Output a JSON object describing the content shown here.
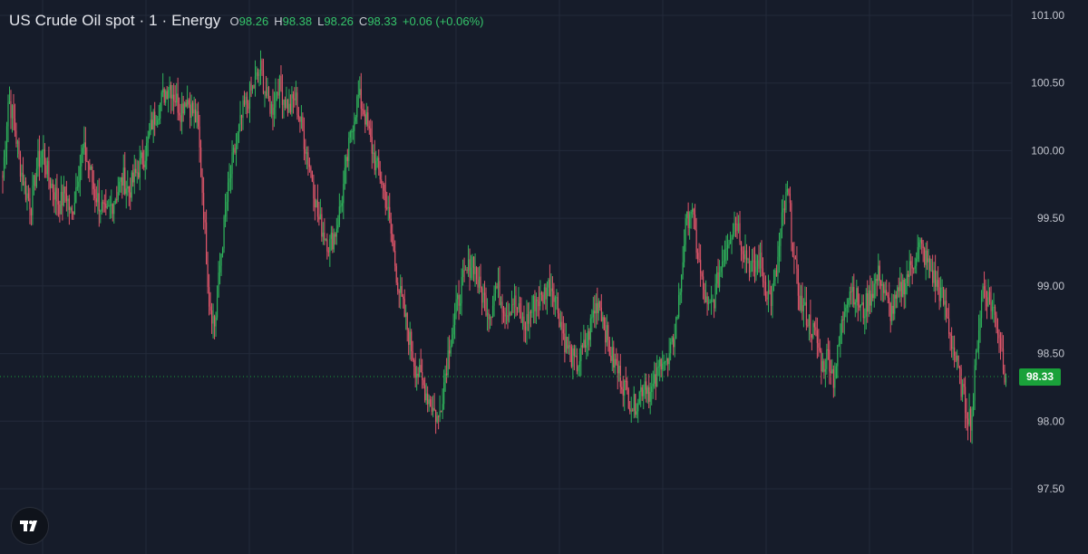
{
  "header": {
    "title": "US Crude Oil spot · 1 · Energy",
    "open_key": "O",
    "open": "98.26",
    "high_key": "H",
    "high": "98.38",
    "low_key": "L",
    "low": "98.26",
    "close_key": "C",
    "close": "98.33",
    "change": "+0.06 (+0.06%)"
  },
  "current_price": "98.33",
  "colors": {
    "background": "#161c2a",
    "grid": "#232a3a",
    "up": "#2fb35b",
    "down": "#e0566a",
    "price_label": "#1aa13a"
  },
  "logo": {
    "icon": "tradingview-logo-icon"
  },
  "chart_data": {
    "type": "candlestick",
    "y_ticks": [
      "101.00",
      "100.50",
      "100.00",
      "99.50",
      "99.00",
      "98.50",
      "98.00",
      "97.50"
    ],
    "ylim": [
      97.3,
      101.05
    ],
    "last": 98.33,
    "series": [
      {
        "name": "US Crude Oil spot",
        "points_close": [
          99.8,
          100.4,
          100.2,
          99.9,
          99.7,
          99.6,
          99.9,
          100.0,
          99.8,
          99.7,
          99.6,
          99.7,
          99.5,
          99.8,
          100.0,
          99.9,
          99.7,
          99.6,
          99.5,
          99.6,
          99.7,
          99.8,
          99.7,
          99.8,
          99.9,
          100.0,
          100.2,
          100.3,
          100.4,
          100.5,
          100.4,
          100.3,
          100.4,
          100.3,
          100.2,
          99.6,
          98.9,
          98.7,
          99.2,
          99.6,
          99.9,
          100.1,
          100.3,
          100.4,
          100.5,
          100.6,
          100.4,
          100.3,
          100.5,
          100.4,
          100.3,
          100.4,
          100.2,
          100.0,
          99.8,
          99.5,
          99.4,
          99.3,
          99.4,
          99.6,
          99.9,
          100.2,
          100.4,
          100.3,
          100.1,
          99.9,
          99.8,
          99.6,
          99.3,
          99.0,
          98.8,
          98.6,
          98.4,
          98.3,
          98.2,
          98.1,
          98.0,
          98.3,
          98.6,
          98.8,
          99.0,
          99.1,
          99.2,
          99.0,
          98.9,
          98.8,
          99.0,
          98.9,
          98.8,
          98.9,
          98.8,
          98.7,
          98.8,
          98.9,
          98.9,
          99.0,
          99.0,
          98.8,
          98.6,
          98.5,
          98.4,
          98.5,
          98.6,
          98.8,
          98.9,
          98.7,
          98.5,
          98.4,
          98.3,
          98.2,
          98.1,
          98.2,
          98.3,
          98.2,
          98.3,
          98.5,
          98.4,
          98.6,
          98.9,
          99.4,
          99.6,
          99.3,
          99.0,
          98.8,
          98.9,
          99.1,
          99.3,
          99.4,
          99.5,
          99.3,
          99.2,
          99.1,
          99.2,
          99.0,
          98.9,
          99.1,
          99.5,
          99.7,
          99.2,
          98.9,
          98.8,
          98.7,
          98.6,
          98.4,
          98.5,
          98.3,
          98.6,
          98.9,
          99.0,
          98.9,
          98.8,
          98.9,
          99.0,
          99.1,
          98.9,
          98.8,
          98.9,
          99.0,
          99.1,
          99.2,
          99.3,
          99.2,
          99.1,
          99.0,
          98.9,
          98.7,
          98.5,
          98.3,
          98.1,
          98.0,
          98.6,
          99.0,
          98.9,
          98.8,
          98.6,
          98.3
        ]
      }
    ]
  }
}
